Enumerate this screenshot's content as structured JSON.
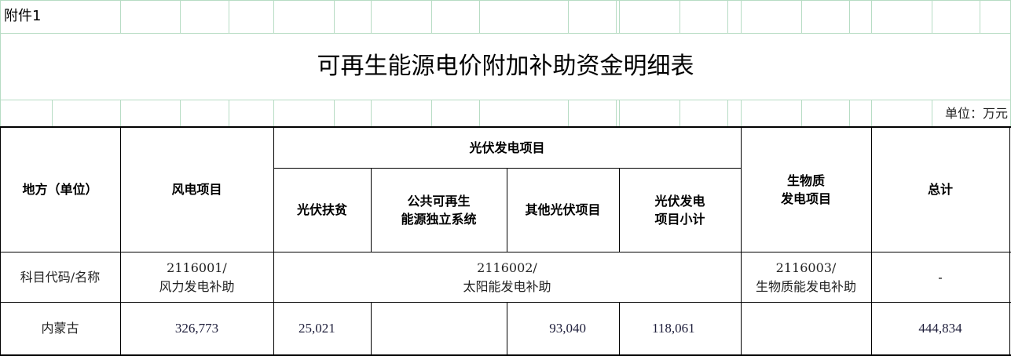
{
  "attachment_label": "附件1",
  "title": "可再生能源电价附加补助资金明细表",
  "unit": "单位：万元",
  "headers": {
    "region": "地方（单位）",
    "wind": "风电项目",
    "solar_group": "光伏发电项目",
    "solar_poverty": "光伏扶贫",
    "solar_public_l1": "公共可再生",
    "solar_public_l2": "能源独立系统",
    "solar_other": "其他光伏项目",
    "solar_subtotal_l1": "光伏发电",
    "solar_subtotal_l2": "项目小计",
    "biomass_l1": "生物质",
    "biomass_l2": "发电项目",
    "total": "总计"
  },
  "code_row": {
    "label": "科目代码/名称",
    "wind_code": "2116001/",
    "wind_name": "风力发电补助",
    "solar_code": "2116002/",
    "solar_name": "太阳能发电补助",
    "biomass_code": "2116003/",
    "biomass_name": "生物质能发电补助",
    "total": "-"
  },
  "rows": [
    {
      "region": "内蒙古",
      "wind": "326,773",
      "solar_poverty": "25,021",
      "solar_public": "",
      "solar_other": "93,040",
      "solar_subtotal": "118,061",
      "biomass": "",
      "total": "444,834"
    }
  ]
}
